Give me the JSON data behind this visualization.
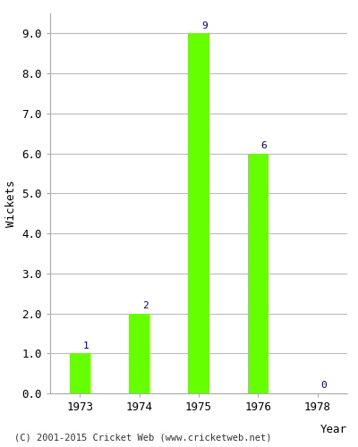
{
  "years": [
    "1973",
    "1974",
    "1975",
    "1976",
    "1978"
  ],
  "values": [
    1,
    2,
    9,
    6,
    0
  ],
  "bar_color": "#66ff00",
  "bar_edgecolor": "#66ff00",
  "label_color": "#000080",
  "ylabel": "Wickets",
  "xlabel": "Year",
  "ylim": [
    0,
    9.5
  ],
  "yticks": [
    0.0,
    1.0,
    2.0,
    3.0,
    4.0,
    5.0,
    6.0,
    7.0,
    8.0,
    9.0
  ],
  "footer": "(C) 2001-2015 Cricket Web (www.cricketweb.net)",
  "background_color": "#ffffff",
  "grid_color": "#bbbbbb",
  "label_fontsize": 8,
  "axis_fontsize": 9,
  "footer_fontsize": 7.5,
  "bar_width": 0.35
}
